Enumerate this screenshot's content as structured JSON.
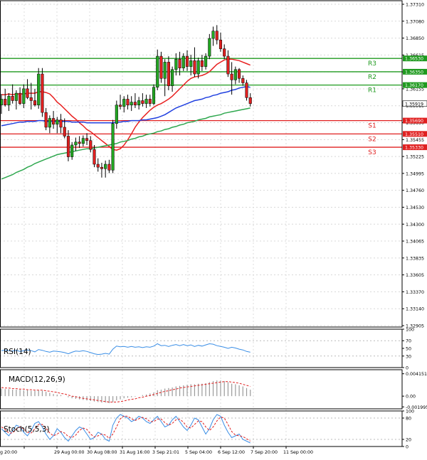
{
  "chart_data": {
    "type": "candlestick",
    "main": {
      "ylim": [
        1.329,
        1.3731
      ],
      "y_ticks": [
        "1.37310",
        "1.37080",
        "1.36850",
        "1.36615",
        "1.36385",
        "1.36155",
        "1.35919",
        "1.35690",
        "1.35455",
        "1.35225",
        "1.34995",
        "1.34760",
        "1.34530",
        "1.34300",
        "1.34065",
        "1.33835",
        "1.33605",
        "1.33370",
        "1.33140",
        "1.32905"
      ],
      "price_marker": {
        "label": "1.35919",
        "value": 1.35919
      },
      "levels": [
        {
          "name": "R3",
          "price_label": "1.36530",
          "value": 1.3653,
          "color": "#1f9a1f"
        },
        {
          "name": "R2",
          "price_label": "1.36350",
          "value": 1.3635,
          "color": "#1f9a1f"
        },
        {
          "name": "R1",
          "price_label": "1.36170",
          "value": 1.3617,
          "color": "#1f9a1f"
        },
        {
          "name": "S1",
          "price_label": "1.35690",
          "value": 1.3569,
          "color": "#e02020"
        },
        {
          "name": "S2",
          "price_label": "1.35510",
          "value": 1.3551,
          "color": "#e02020"
        },
        {
          "name": "S3",
          "price_label": "1.35330",
          "value": 1.3533,
          "color": "#e02020"
        }
      ],
      "candles": [
        [
          1.359,
          1.3605,
          1.3578,
          1.3598
        ],
        [
          1.3598,
          1.3612,
          1.3588,
          1.359
        ],
        [
          1.359,
          1.3606,
          1.3582,
          1.3602
        ],
        [
          1.3602,
          1.3618,
          1.3592,
          1.3596
        ],
        [
          1.3596,
          1.361,
          1.3584,
          1.3606
        ],
        [
          1.3606,
          1.3614,
          1.359,
          1.3592
        ],
        [
          1.3592,
          1.3618,
          1.3586,
          1.3612
        ],
        [
          1.3612,
          1.3625,
          1.3598,
          1.36
        ],
        [
          1.36,
          1.362,
          1.3584,
          1.3596
        ],
        [
          1.3596,
          1.3612,
          1.3588,
          1.359
        ],
        [
          1.359,
          1.364,
          1.3585,
          1.3632
        ],
        [
          1.3632,
          1.364,
          1.3574,
          1.358
        ],
        [
          1.358,
          1.3586,
          1.3556,
          1.356
        ],
        [
          1.356,
          1.3576,
          1.3552,
          1.3572
        ],
        [
          1.3572,
          1.3582,
          1.3558,
          1.3564
        ],
        [
          1.3564,
          1.3574,
          1.3552,
          1.357
        ],
        [
          1.357,
          1.3578,
          1.3552,
          1.356
        ],
        [
          1.356,
          1.3572,
          1.3545,
          1.3548
        ],
        [
          1.3548,
          1.3556,
          1.3514,
          1.352
        ],
        [
          1.352,
          1.354,
          1.3516,
          1.3536
        ],
        [
          1.3536,
          1.3546,
          1.3528,
          1.354
        ],
        [
          1.354,
          1.3548,
          1.3532,
          1.3538
        ],
        [
          1.3538,
          1.3549,
          1.3534,
          1.3545
        ],
        [
          1.3545,
          1.3552,
          1.3536,
          1.3542
        ],
        [
          1.3542,
          1.3548,
          1.3526,
          1.353
        ],
        [
          1.353,
          1.3536,
          1.3506,
          1.351
        ],
        [
          1.351,
          1.3518,
          1.35,
          1.3506
        ],
        [
          1.3506,
          1.3512,
          1.3492,
          1.3504
        ],
        [
          1.3504,
          1.3515,
          1.3492,
          1.351
        ],
        [
          1.351,
          1.3516,
          1.3498,
          1.3502
        ],
        [
          1.3502,
          1.357,
          1.3498,
          1.3565
        ],
        [
          1.3565,
          1.3596,
          1.3558,
          1.359
        ],
        [
          1.359,
          1.3604,
          1.3584,
          1.3588
        ],
        [
          1.3588,
          1.3602,
          1.358,
          1.3598
        ],
        [
          1.3598,
          1.3604,
          1.3584,
          1.359
        ],
        [
          1.359,
          1.3602,
          1.3582,
          1.3594
        ],
        [
          1.3594,
          1.3606,
          1.3586,
          1.359
        ],
        [
          1.359,
          1.3601,
          1.3584,
          1.3596
        ],
        [
          1.3596,
          1.3606,
          1.3588,
          1.3592
        ],
        [
          1.3592,
          1.3604,
          1.3586,
          1.3598
        ],
        [
          1.3598,
          1.3604,
          1.3588,
          1.3592
        ],
        [
          1.3592,
          1.3618,
          1.359,
          1.3614
        ],
        [
          1.3614,
          1.3665,
          1.361,
          1.3656
        ],
        [
          1.3656,
          1.3662,
          1.362,
          1.3626
        ],
        [
          1.3626,
          1.3652,
          1.3602,
          1.3648
        ],
        [
          1.3648,
          1.3656,
          1.361,
          1.3616
        ],
        [
          1.3616,
          1.3642,
          1.3608,
          1.3638
        ],
        [
          1.3638,
          1.366,
          1.363,
          1.3652
        ],
        [
          1.3652,
          1.3662,
          1.363,
          1.364
        ],
        [
          1.364,
          1.366,
          1.3636,
          1.3656
        ],
        [
          1.3656,
          1.3664,
          1.3636,
          1.3642
        ],
        [
          1.3642,
          1.3658,
          1.363,
          1.365
        ],
        [
          1.365,
          1.3668,
          1.3628,
          1.3632
        ],
        [
          1.3632,
          1.3654,
          1.3626,
          1.365
        ],
        [
          1.365,
          1.3658,
          1.3636,
          1.3642
        ],
        [
          1.3642,
          1.366,
          1.3638,
          1.3656
        ],
        [
          1.3656,
          1.3686,
          1.3652,
          1.368
        ],
        [
          1.368,
          1.3696,
          1.367,
          1.369
        ],
        [
          1.369,
          1.3698,
          1.3672,
          1.3678
        ],
        [
          1.3678,
          1.3688,
          1.3662,
          1.3666
        ],
        [
          1.3666,
          1.3672,
          1.3652,
          1.3656
        ],
        [
          1.3656,
          1.3664,
          1.3628,
          1.3632
        ],
        [
          1.3632,
          1.3648,
          1.3604,
          1.3624
        ],
        [
          1.3624,
          1.3642,
          1.3618,
          1.3638
        ],
        [
          1.3638,
          1.364,
          1.362,
          1.3626
        ],
        [
          1.3626,
          1.363,
          1.3616,
          1.362
        ],
        [
          1.362,
          1.3624,
          1.3596,
          1.36
        ],
        [
          1.36,
          1.3606,
          1.3588,
          1.3592
        ]
      ],
      "ma_series": [
        {
          "color": "#e82020",
          "values": [
            1.3604,
            1.3604,
            1.3605,
            1.3604,
            1.3605,
            1.3605,
            1.3605,
            1.3606,
            1.3606,
            1.3606,
            1.3608,
            1.3608,
            1.3607,
            1.3605,
            1.36,
            1.3594,
            1.359,
            1.3585,
            1.358,
            1.3575,
            1.3571,
            1.3566,
            1.3562,
            1.3557,
            1.3554,
            1.355,
            1.3546,
            1.3542,
            1.3538,
            1.3534,
            1.353,
            1.3529,
            1.3531,
            1.3536,
            1.3543,
            1.3551,
            1.356,
            1.3567,
            1.3573,
            1.3578,
            1.3583,
            1.3587,
            1.359,
            1.3592,
            1.3595,
            1.3598,
            1.3602,
            1.3607,
            1.3612,
            1.3617,
            1.3622,
            1.3626,
            1.3628,
            1.3629,
            1.363,
            1.3632,
            1.3635,
            1.364,
            1.3645,
            1.3648,
            1.3651,
            1.3652,
            1.3652,
            1.3651,
            1.365,
            1.3648,
            1.3646,
            1.3644
          ]
        },
        {
          "color": "#2040e0",
          "values": [
            1.3562,
            1.3563,
            1.3564,
            1.3565,
            1.3566,
            1.3567,
            1.3567,
            1.3568,
            1.3568,
            1.3568,
            1.3569,
            1.3569,
            1.3568,
            1.3568,
            1.3568,
            1.3568,
            1.3568,
            1.3568,
            1.3568,
            1.3567,
            1.3567,
            1.3567,
            1.3567,
            1.3566,
            1.3566,
            1.3566,
            1.3566,
            1.3566,
            1.3566,
            1.3566,
            1.3566,
            1.3567,
            1.3567,
            1.3568,
            1.3568,
            1.3569,
            1.3569,
            1.3569,
            1.357,
            1.357,
            1.3571,
            1.3572,
            1.3573,
            1.3575,
            1.3577,
            1.358,
            1.3583,
            1.3586,
            1.3588,
            1.359,
            1.3592,
            1.3594,
            1.3596,
            1.3597,
            1.3598,
            1.36,
            1.3601,
            1.3603,
            1.3604,
            1.3606,
            1.3607,
            1.3608,
            1.361,
            1.3611,
            1.3613,
            1.3614,
            1.3615,
            1.3614
          ]
        },
        {
          "color": "#2fa84f",
          "values": [
            1.349,
            1.3492,
            1.3494,
            1.3496,
            1.3499,
            1.3501,
            1.3503,
            1.3506,
            1.3508,
            1.3511,
            1.3513,
            1.3515,
            1.3517,
            1.3519,
            1.3521,
            1.3523,
            1.3524,
            1.3525,
            1.3526,
            1.3527,
            1.3528,
            1.3529,
            1.353,
            1.3531,
            1.3531,
            1.3532,
            1.3533,
            1.3534,
            1.3535,
            1.3536,
            1.3537,
            1.3538,
            1.354,
            1.3541,
            1.3542,
            1.3544,
            1.3545,
            1.3547,
            1.3548,
            1.355,
            1.3551,
            1.3552,
            1.3554,
            1.3555,
            1.3557,
            1.3558,
            1.356,
            1.3561,
            1.3563,
            1.3564,
            1.3566,
            1.3567,
            1.3568,
            1.357,
            1.3571,
            1.3572,
            1.3574,
            1.3575,
            1.3576,
            1.3577,
            1.3579,
            1.358,
            1.3581,
            1.3582,
            1.3583,
            1.3584,
            1.3585,
            1.3586
          ]
        }
      ]
    },
    "x_labels": [
      "g 20:00",
      "29 Aug 00:00",
      "30 Aug 08:00",
      "31 Aug 16:00",
      "3 Sep 21:01",
      "5 Sep 04:00",
      "6 Sep 12:00",
      "7 Sep 20:00",
      "11 Sep 00:00"
    ],
    "rsi": {
      "label": "RSI(14)",
      "ylim": [
        0,
        100
      ],
      "y_ticks": [
        "100",
        "70",
        "50",
        "30",
        "0"
      ],
      "color": "#3a8ee6",
      "values": [
        44,
        46,
        44,
        43,
        45,
        42,
        44,
        46,
        44,
        41,
        47,
        45,
        42,
        40,
        43,
        42,
        41,
        39,
        36,
        40,
        43,
        42,
        44,
        42,
        39,
        36,
        34,
        35,
        37,
        35,
        48,
        56,
        54,
        55,
        53,
        55,
        53,
        54,
        52,
        54,
        53,
        56,
        62,
        57,
        58,
        55,
        58,
        60,
        57,
        60,
        57,
        59,
        55,
        58,
        56,
        59,
        62,
        61,
        57,
        55,
        53,
        50,
        53,
        51,
        48,
        46,
        42,
        40
      ]
    },
    "macd": {
      "label": "MACD(12,26,9)",
      "ylim": [
        -0.00235,
        0.0049
      ],
      "y_ticks": [
        "0.004151",
        "0.00",
        "-0.001995"
      ],
      "hist_color": "#9a9a9a",
      "signal_color": "#e02020",
      "histogram": [
        0.0014,
        0.0013,
        0.0013,
        0.0012,
        0.0012,
        0.0012,
        0.0011,
        0.0011,
        0.001,
        0.001,
        0.0011,
        0.001,
        0.0008,
        0.0006,
        0.0004,
        0.0003,
        0.0002,
        0.0,
        -0.0002,
        -0.0004,
        -0.0005,
        -0.0006,
        -0.0007,
        -0.0008,
        -0.0009,
        -0.001,
        -0.0011,
        -0.0012,
        -0.0012,
        -0.0013,
        -0.0011,
        -0.0008,
        -0.0006,
        -0.0004,
        -0.0003,
        -0.0002,
        -0.0001,
        0.0,
        0.0002,
        0.0003,
        0.0005,
        0.0007,
        0.0011,
        0.0012,
        0.0014,
        0.0015,
        0.0016,
        0.0018,
        0.0019,
        0.002,
        0.0021,
        0.0022,
        0.0022,
        0.0023,
        0.0023,
        0.0024,
        0.0026,
        0.0028,
        0.0029,
        0.0029,
        0.0028,
        0.0026,
        0.0023,
        0.0022,
        0.002,
        0.0018,
        0.0015,
        0.0012
      ],
      "signal": [
        0.0016,
        0.0015,
        0.0015,
        0.0014,
        0.0014,
        0.0013,
        0.0013,
        0.0012,
        0.0012,
        0.0011,
        0.0011,
        0.0011,
        0.001,
        0.0009,
        0.0008,
        0.0007,
        0.0005,
        0.0004,
        0.0002,
        0.0,
        -0.0001,
        -0.0003,
        -0.0004,
        -0.0005,
        -0.0006,
        -0.0007,
        -0.0008,
        -0.0009,
        -0.001,
        -0.0011,
        -0.0011,
        -0.0011,
        -0.001,
        -0.0009,
        -0.0007,
        -0.0006,
        -0.0005,
        -0.0003,
        -0.0002,
        0.0,
        0.0001,
        0.0003,
        0.0005,
        0.0007,
        0.0009,
        0.001,
        0.0012,
        0.0013,
        0.0015,
        0.0016,
        0.0017,
        0.0018,
        0.0019,
        0.002,
        0.0021,
        0.0022,
        0.0023,
        0.0024,
        0.0025,
        0.0026,
        0.0027,
        0.0027,
        0.0026,
        0.0025,
        0.0024,
        0.0022,
        0.002,
        0.0018
      ]
    },
    "stoch": {
      "label": "Stoch(5,5,3)",
      "ylim": [
        0,
        100
      ],
      "y_ticks": [
        "100",
        "80",
        "20",
        "0"
      ],
      "main_color": "#3a8ee6",
      "signal_color": "#e02020",
      "main": [
        50,
        40,
        30,
        45,
        60,
        55,
        40,
        30,
        45,
        65,
        70,
        55,
        35,
        20,
        30,
        50,
        40,
        25,
        15,
        30,
        45,
        55,
        50,
        35,
        20,
        25,
        40,
        35,
        20,
        15,
        60,
        80,
        90,
        85,
        80,
        70,
        75,
        85,
        80,
        70,
        65,
        75,
        85,
        70,
        55,
        60,
        75,
        85,
        70,
        55,
        45,
        60,
        80,
        75,
        55,
        35,
        50,
        75,
        90,
        85,
        60,
        40,
        25,
        30,
        35,
        20,
        15,
        10
      ],
      "signal": [
        55,
        48,
        38,
        38,
        48,
        55,
        50,
        40,
        38,
        50,
        62,
        62,
        52,
        38,
        30,
        35,
        42,
        38,
        28,
        25,
        32,
        45,
        52,
        48,
        35,
        27,
        30,
        35,
        32,
        23,
        35,
        55,
        78,
        86,
        85,
        78,
        73,
        78,
        82,
        78,
        70,
        70,
        77,
        77,
        67,
        60,
        65,
        75,
        77,
        68,
        55,
        52,
        62,
        72,
        70,
        55,
        45,
        55,
        72,
        83,
        80,
        62,
        42,
        32,
        30,
        28,
        22,
        15
      ]
    }
  }
}
